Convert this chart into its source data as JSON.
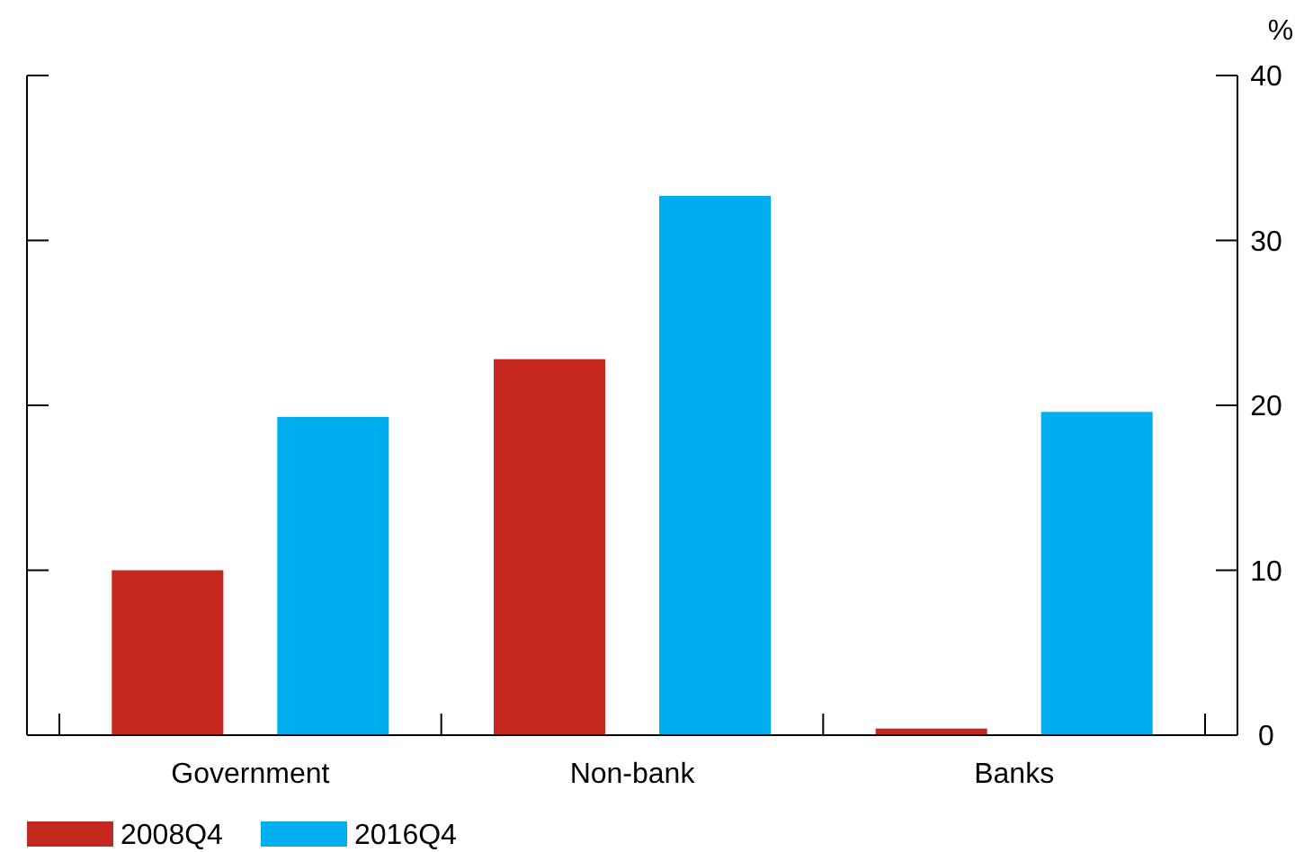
{
  "chart_data": {
    "type": "bar",
    "ylabel": "%",
    "categories": [
      "Government",
      "Non-bank",
      "Banks"
    ],
    "series": [
      {
        "name": "2008Q4",
        "color": "#c4281f",
        "values": [
          10.0,
          22.8,
          0.4
        ]
      },
      {
        "name": "2016Q4",
        "color": "#00aeef",
        "values": [
          19.3,
          32.7,
          19.6
        ]
      }
    ],
    "ylim": [
      0,
      40
    ],
    "yticks": [
      0,
      10,
      20,
      30,
      40
    ],
    "grid": false,
    "legend": "bottom left"
  }
}
